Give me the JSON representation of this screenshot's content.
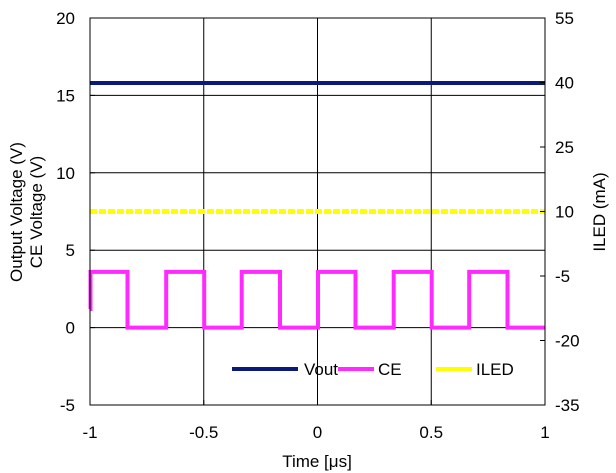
{
  "chart_data": {
    "type": "line",
    "xlabel": "Time [μs]",
    "ylabel_left": [
      "Output Voltage (V)",
      "CE Voltage (V)"
    ],
    "ylabel_right": "ILED (mA)",
    "xlim": [
      -1,
      1
    ],
    "ylim_left": [
      -5,
      20
    ],
    "ylim_right": [
      -35,
      55
    ],
    "xticks": [
      "-1",
      "-0.5",
      "0",
      "0.5",
      "1"
    ],
    "yticks_left": [
      "-5",
      "0",
      "5",
      "10",
      "15",
      "20"
    ],
    "yticks_right": [
      "-35",
      "-20",
      "-5",
      "10",
      "25",
      "40",
      "55"
    ],
    "grid": true,
    "legend_position": "bottom-right",
    "series": [
      {
        "name": "Vout",
        "axis": "left",
        "color": "#0a1a7a",
        "x": [
          -1,
          1
        ],
        "y": [
          15.8,
          15.8
        ]
      },
      {
        "name": "CE",
        "axis": "left",
        "color": "#ff2aff",
        "x": [
          -1,
          -0.998,
          -0.998,
          -0.835,
          -0.835,
          -0.665,
          -0.665,
          -0.498,
          -0.498,
          -0.333,
          -0.333,
          -0.165,
          -0.165,
          0.002,
          0.002,
          0.167,
          0.167,
          0.335,
          0.335,
          0.502,
          0.502,
          0.667,
          0.667,
          0.835,
          0.835,
          1.0
        ],
        "y": [
          1.2,
          1.2,
          3.6,
          3.6,
          0.0,
          0.0,
          3.6,
          3.6,
          0.0,
          0.0,
          3.6,
          3.6,
          0.0,
          0.0,
          3.6,
          3.6,
          0.0,
          0.0,
          3.6,
          3.6,
          0.0,
          0.0,
          3.6,
          3.6,
          0.0,
          0.0
        ]
      },
      {
        "name": "ILED",
        "axis": "right",
        "color": "#ffff00",
        "x": [
          -1,
          1
        ],
        "y": [
          10,
          10
        ]
      }
    ]
  }
}
